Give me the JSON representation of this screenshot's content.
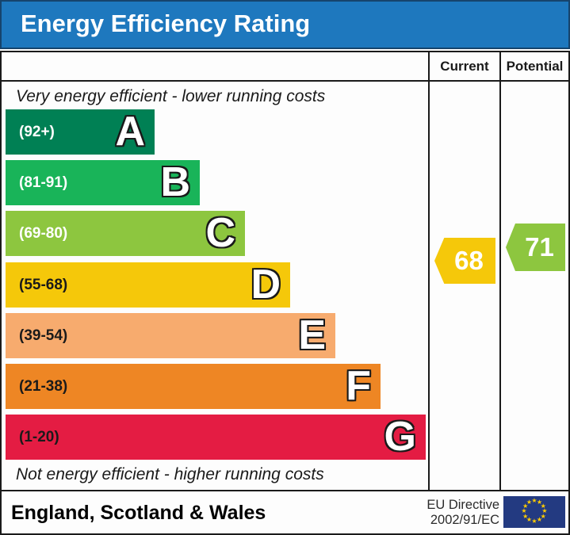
{
  "title": "Energy Efficiency Rating",
  "columns": {
    "current": "Current",
    "potential": "Potential"
  },
  "top_note": "Very energy efficient - lower running costs",
  "bottom_note": "Not energy efficient - higher running costs",
  "bands": [
    {
      "letter": "A",
      "range": "(92+)",
      "color": "#008054",
      "range_color": "#ffffff"
    },
    {
      "letter": "B",
      "range": "(81-91)",
      "color": "#19b459",
      "range_color": "#ffffff"
    },
    {
      "letter": "C",
      "range": "(69-80)",
      "color": "#8dc63f",
      "range_color": "#ffffff"
    },
    {
      "letter": "D",
      "range": "(55-68)",
      "color": "#f5c80a",
      "range_color": "#1a1a1a"
    },
    {
      "letter": "E",
      "range": "(39-54)",
      "color": "#f7ab6e",
      "range_color": "#1a1a1a"
    },
    {
      "letter": "F",
      "range": "(21-38)",
      "color": "#ee8624",
      "range_color": "#1a1a1a"
    },
    {
      "letter": "G",
      "range": "(1-20)",
      "color": "#e41c43",
      "range_color": "#1a1a1a"
    }
  ],
  "current": {
    "value": "68",
    "color": "#f5c80a"
  },
  "potential": {
    "value": "71",
    "color": "#8dc63f"
  },
  "footer": {
    "region": "England, Scotland & Wales",
    "directive_line1": "EU Directive",
    "directive_line2": "2002/91/EC",
    "flag_color": "#233a81",
    "flag_star_glyph": "★"
  },
  "theme": {
    "title_bar_color": "#1e78be",
    "border_color": "#1a1a1a"
  },
  "chart_data": {
    "type": "bar",
    "orientation": "horizontal",
    "title": "Energy Efficiency Rating",
    "categories": [
      "A",
      "B",
      "C",
      "D",
      "E",
      "F",
      "G"
    ],
    "band_ranges": [
      "92+",
      "81-91",
      "69-80",
      "55-68",
      "39-54",
      "21-38",
      "1-20"
    ],
    "band_colors": [
      "#008054",
      "#19b459",
      "#8dc63f",
      "#f5c80a",
      "#f7ab6e",
      "#ee8624",
      "#e41c43"
    ],
    "bar_lengths_relative": [
      1,
      1.31,
      1.62,
      1.92,
      2.22,
      2.52,
      2.82
    ],
    "series": [
      {
        "name": "Current",
        "value": 68,
        "band": "D",
        "color": "#f5c80a"
      },
      {
        "name": "Potential",
        "value": 71,
        "band": "C",
        "color": "#8dc63f"
      }
    ],
    "annotations": [
      "Very energy efficient - lower running costs",
      "Not energy efficient - higher running costs"
    ],
    "legend_position": "none",
    "grid": false
  }
}
